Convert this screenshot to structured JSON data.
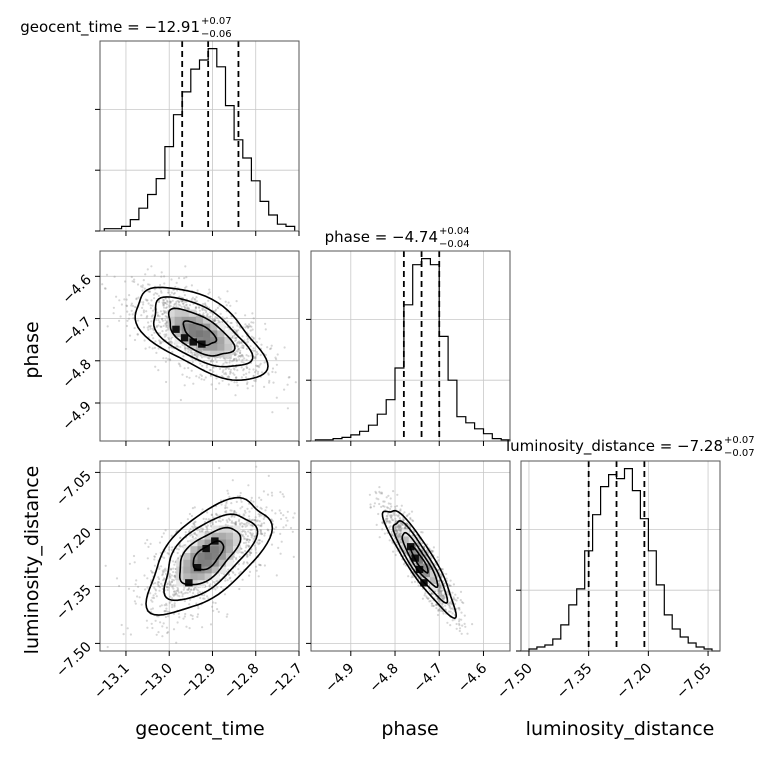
{
  "chart_data": {
    "type": "corner",
    "parameters": [
      {
        "name": "geocent_time",
        "title": {
          "main": "geocent_time = −12.91",
          "sup": "+0.07",
          "sub": "−0.06"
        },
        "range": [
          -13.16,
          -12.7
        ],
        "ticks": [
          -13.1,
          -13.0,
          -12.9,
          -12.8,
          -12.7
        ],
        "tick_labels": [
          "−13.1",
          "−13.0",
          "−12.9",
          "−12.8",
          "−12.7"
        ],
        "quantiles": [
          -12.97,
          -12.91,
          -12.84
        ],
        "hist": {
          "edges": [
            -13.15,
            -13.13,
            -13.11,
            -13.09,
            -13.07,
            -13.05,
            -13.03,
            -13.01,
            -12.99,
            -12.97,
            -12.95,
            -12.93,
            -12.91,
            -12.89,
            -12.87,
            -12.85,
            -12.83,
            -12.81,
            -12.79,
            -12.77,
            -12.75,
            -12.73,
            -12.71
          ],
          "counts": [
            1,
            1,
            2,
            5,
            10,
            16,
            23,
            37,
            51,
            61,
            71,
            75,
            80,
            72,
            55,
            40,
            32,
            22,
            13,
            7,
            3,
            2
          ]
        }
      },
      {
        "name": "phase",
        "title": {
          "main": "phase = −4.74",
          "sup": "+0.04",
          "sub": "−0.04"
        },
        "range": [
          -4.99,
          -4.54
        ],
        "ticks": [
          -4.9,
          -4.8,
          -4.7,
          -4.6
        ],
        "tick_labels": [
          "−4.9",
          "−4.8",
          "−4.7",
          "−4.6"
        ],
        "quantiles": [
          -4.78,
          -4.74,
          -4.7
        ],
        "hist": {
          "edges": [
            -4.98,
            -4.96,
            -4.94,
            -4.92,
            -4.9,
            -4.88,
            -4.86,
            -4.84,
            -4.82,
            -4.8,
            -4.78,
            -4.76,
            -4.74,
            -4.72,
            -4.7,
            -4.68,
            -4.66,
            -4.64,
            -4.62,
            -4.6,
            -4.58,
            -4.56,
            -4.54
          ],
          "counts": [
            1,
            1,
            2,
            3,
            5,
            8,
            13,
            22,
            34,
            60,
            112,
            145,
            150,
            145,
            86,
            50,
            20,
            15,
            10,
            6,
            2,
            1
          ]
        }
      },
      {
        "name": "luminosity_distance",
        "title": {
          "main": "luminosity_distance = −7.28",
          "sup": "+0.07",
          "sub": "−0.07"
        },
        "range": [
          -7.52,
          -7.02
        ],
        "ticks": [
          -7.5,
          -7.35,
          -7.2,
          -7.05
        ],
        "tick_labels": [
          "−7.50",
          "−7.35",
          "−7.20",
          "−7.05"
        ],
        "quantiles": [
          -7.35,
          -7.28,
          -7.21
        ],
        "hist": {
          "edges": [
            -7.52,
            -7.5,
            -7.48,
            -7.46,
            -7.44,
            -7.42,
            -7.4,
            -7.38,
            -7.36,
            -7.34,
            -7.32,
            -7.3,
            -7.28,
            -7.26,
            -7.24,
            -7.22,
            -7.2,
            -7.18,
            -7.16,
            -7.14,
            -7.12,
            -7.1,
            -7.08,
            -7.06,
            -7.04,
            -7.02
          ],
          "counts": [
            0,
            1,
            2,
            3,
            6,
            13,
            23,
            31,
            50,
            68,
            82,
            88,
            86,
            91,
            80,
            66,
            50,
            33,
            18,
            11,
            7,
            4,
            2,
            1,
            0
          ]
        }
      }
    ],
    "pairs": [
      {
        "x": "geocent_time",
        "y": "phase",
        "center": [
          -12.93,
          -4.735
        ],
        "sigma": [
          0.075,
          0.055
        ],
        "rho": -0.6,
        "contour_levels": [
          "0.5",
          "1.0",
          "1.5",
          "2.0"
        ],
        "peak_cells": [
          [
            -12.985,
            -4.725
          ],
          [
            -12.965,
            -4.745
          ],
          [
            -12.945,
            -4.755
          ],
          [
            -12.925,
            -4.76
          ]
        ]
      },
      {
        "x": "geocent_time",
        "y": "luminosity_distance",
        "center": [
          -12.91,
          -7.27
        ],
        "sigma": [
          0.07,
          0.075
        ],
        "rho": 0.6,
        "contour_levels": [
          "0.5",
          "1.0",
          "1.5",
          "2.0"
        ],
        "peak_cells": [
          [
            -12.955,
            -7.34
          ],
          [
            -12.935,
            -7.3
          ],
          [
            -12.915,
            -7.25
          ],
          [
            -12.895,
            -7.23
          ]
        ]
      },
      {
        "x": "phase",
        "y": "luminosity_distance",
        "center": [
          -4.745,
          -7.28
        ],
        "sigma": [
          0.04,
          0.07
        ],
        "rho": -0.9,
        "contour_levels": [
          "0.5",
          "1.0",
          "1.5",
          "2.0"
        ],
        "peak_cells": [
          [
            -4.765,
            -7.245
          ],
          [
            -4.755,
            -7.275
          ],
          [
            -4.745,
            -7.305
          ],
          [
            -4.735,
            -7.34
          ]
        ]
      }
    ],
    "grid": true,
    "xlabels": [
      "geocent_time",
      "phase",
      "luminosity_distance"
    ],
    "ylabels": [
      "phase",
      "luminosity_distance"
    ]
  }
}
